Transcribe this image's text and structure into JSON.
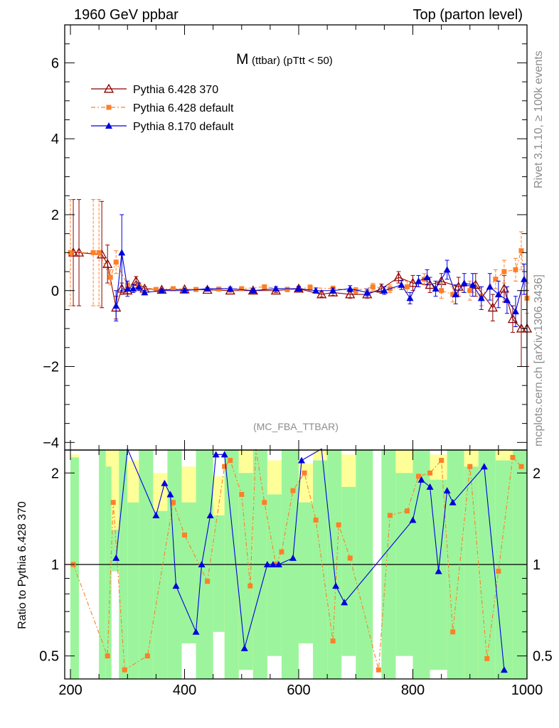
{
  "header": {
    "left": "1960 GeV ppbar",
    "right": "Top (parton level)"
  },
  "side_labels": {
    "rivet": "Rivet 3.1.10, ≥ 100k events",
    "mcplots": "mcplots.cern.ch [arXiv:1306.3436]"
  },
  "colors": {
    "p6_370": "#8b0000",
    "p6_default": "#ff7f27",
    "p8_default": "#0000dd",
    "band_green": "#9cf59c",
    "band_yellow": "#ffff99"
  },
  "chart_data": {
    "type": "scatter",
    "title_main": "M",
    "title_sub": "(ttbar) (pTtt < 50)",
    "analysis_label": "(MC_FBA_TTBAR)",
    "xlim": [
      190,
      1000
    ],
    "ylim": [
      -4.2,
      7.0
    ],
    "x_ticks": [
      200,
      400,
      600,
      800,
      1000
    ],
    "x_tick_labels": [
      "200",
      "400",
      "600",
      "800",
      "1000"
    ],
    "y_ticks": [
      -4,
      -2,
      0,
      2,
      4,
      6
    ],
    "y_tick_labels": [
      "−4",
      "−2",
      "0",
      "2",
      "4",
      "6"
    ],
    "legend": [
      {
        "name": "Pythia 6.428 370",
        "marker": "open-triangle",
        "line": "solid"
      },
      {
        "name": "Pythia 6.428 default",
        "marker": "square",
        "line": "dashdot"
      },
      {
        "name": "Pythia 8.170 default",
        "marker": "filled-triangle",
        "line": "solid"
      }
    ],
    "series": [
      {
        "name": "Pythia 6.428 370",
        "points": [
          [
            205,
            1.0,
            1.4
          ],
          [
            215,
            1.0,
            1.4
          ],
          [
            255,
            0.95,
            1.4
          ],
          [
            265,
            0.7,
            0.5
          ],
          [
            280,
            -0.45,
            0.3
          ],
          [
            290,
            0.05,
            0.15
          ],
          [
            300,
            0.0,
            0.08
          ],
          [
            315,
            0.25,
            0.12
          ],
          [
            330,
            0.05,
            0.05
          ],
          [
            360,
            0.02,
            0.03
          ],
          [
            400,
            0.03,
            0.03
          ],
          [
            440,
            0.02,
            0.03
          ],
          [
            480,
            0.0,
            0.04
          ],
          [
            520,
            0.0,
            0.05
          ],
          [
            560,
            0.0,
            0.05
          ],
          [
            600,
            0.05,
            0.06
          ],
          [
            640,
            -0.1,
            0.07
          ],
          [
            660,
            -0.05,
            0.08
          ],
          [
            690,
            -0.1,
            0.1
          ],
          [
            720,
            -0.1,
            0.1
          ],
          [
            745,
            0.05,
            0.12
          ],
          [
            775,
            0.35,
            0.15
          ],
          [
            800,
            0.2,
            0.2
          ],
          [
            830,
            0.15,
            0.2
          ],
          [
            850,
            0.25,
            0.2
          ],
          [
            880,
            0.1,
            0.25
          ],
          [
            910,
            0.15,
            0.3
          ],
          [
            940,
            -0.45,
            0.35
          ],
          [
            960,
            0.05,
            0.35
          ],
          [
            975,
            -0.75,
            0.35
          ],
          [
            990,
            -1.0,
            1.0
          ],
          [
            1000,
            -1.0,
            1.0
          ]
        ]
      },
      {
        "name": "Pythia 6.428 default",
        "points": [
          [
            200,
            1.0,
            1.4
          ],
          [
            240,
            1.0,
            1.4
          ],
          [
            250,
            1.0,
            1.4
          ],
          [
            270,
            0.35,
            0.2
          ],
          [
            280,
            0.75,
            0.3
          ],
          [
            300,
            0.15,
            0.1
          ],
          [
            320,
            0.1,
            0.08
          ],
          [
            350,
            0.03,
            0.04
          ],
          [
            380,
            0.05,
            0.04
          ],
          [
            420,
            0.03,
            0.03
          ],
          [
            460,
            0.04,
            0.04
          ],
          [
            500,
            0.05,
            0.05
          ],
          [
            540,
            0.1,
            0.05
          ],
          [
            580,
            0.03,
            0.06
          ],
          [
            620,
            0.08,
            0.07
          ],
          [
            660,
            0.05,
            0.07
          ],
          [
            700,
            0.0,
            0.08
          ],
          [
            730,
            0.1,
            0.09
          ],
          [
            760,
            0.05,
            0.1
          ],
          [
            790,
            0.1,
            0.15
          ],
          [
            820,
            0.3,
            0.15
          ],
          [
            850,
            0.0,
            0.2
          ],
          [
            870,
            -0.1,
            0.2
          ],
          [
            900,
            0.0,
            0.25
          ],
          [
            920,
            -0.15,
            0.25
          ],
          [
            945,
            0.3,
            0.25
          ],
          [
            960,
            0.5,
            0.3
          ],
          [
            980,
            0.55,
            0.3
          ],
          [
            990,
            1.05,
            0.5
          ],
          [
            1000,
            -0.2,
            0.4
          ]
        ]
      },
      {
        "name": "Pythia 8.170 default",
        "points": [
          [
            280,
            -0.4,
            0.4
          ],
          [
            290,
            1.0,
            1.0
          ],
          [
            300,
            0.05,
            0.2
          ],
          [
            310,
            0.05,
            0.1
          ],
          [
            320,
            0.1,
            0.1
          ],
          [
            330,
            -0.05,
            0.06
          ],
          [
            360,
            0.0,
            0.03
          ],
          [
            400,
            0.0,
            0.03
          ],
          [
            440,
            0.05,
            0.03
          ],
          [
            480,
            0.05,
            0.04
          ],
          [
            520,
            0.0,
            0.05
          ],
          [
            560,
            0.05,
            0.05
          ],
          [
            600,
            0.05,
            0.06
          ],
          [
            630,
            0.0,
            0.07
          ],
          [
            660,
            0.0,
            0.07
          ],
          [
            690,
            0.05,
            0.08
          ],
          [
            720,
            -0.05,
            0.09
          ],
          [
            750,
            0.0,
            0.1
          ],
          [
            780,
            0.15,
            0.12
          ],
          [
            795,
            -0.2,
            0.15
          ],
          [
            810,
            0.25,
            0.15
          ],
          [
            825,
            0.35,
            0.2
          ],
          [
            840,
            0.05,
            0.2
          ],
          [
            860,
            0.55,
            0.25
          ],
          [
            875,
            -0.1,
            0.25
          ],
          [
            890,
            0.2,
            0.25
          ],
          [
            905,
            0.15,
            0.3
          ],
          [
            920,
            -0.2,
            0.3
          ],
          [
            935,
            0.1,
            0.35
          ],
          [
            950,
            -0.1,
            0.35
          ],
          [
            965,
            -0.25,
            0.35
          ],
          [
            980,
            -0.55,
            0.4
          ],
          [
            995,
            0.3,
            0.4
          ]
        ]
      }
    ],
    "ratio": {
      "ylabel": "Ratio to Pythia 6.428 370",
      "y_ticks": [
        0.5,
        1,
        2
      ],
      "y_tick_labels": [
        "0.5",
        "1",
        "2"
      ],
      "ylim": [
        0.42,
        2.38
      ],
      "reference": 1,
      "series": [
        {
          "name": "Pythia 6.428 default",
          "points": [
            [
              205,
              1.0
            ],
            [
              265,
              0.5
            ],
            [
              275,
              1.6
            ],
            [
              295,
              0.45
            ],
            [
              335,
              0.5
            ],
            [
              380,
              1.6
            ],
            [
              400,
              1.25
            ],
            [
              440,
              0.88
            ],
            [
              470,
              2.1
            ],
            [
              480,
              2.2
            ],
            [
              500,
              1.7
            ],
            [
              515,
              0.85
            ],
            [
              525,
              2.4
            ],
            [
              540,
              1.6
            ],
            [
              560,
              1.0
            ],
            [
              570,
              1.1
            ],
            [
              590,
              1.75
            ],
            [
              610,
              2.0
            ],
            [
              630,
              1.4
            ],
            [
              660,
              0.56
            ],
            [
              670,
              1.35
            ],
            [
              690,
              1.05
            ],
            [
              740,
              0.45
            ],
            [
              760,
              1.45
            ],
            [
              790,
              1.5
            ],
            [
              810,
              1.95
            ],
            [
              830,
              2.0
            ],
            [
              850,
              2.2
            ],
            [
              870,
              0.6
            ],
            [
              900,
              2.1
            ],
            [
              930,
              0.49
            ],
            [
              950,
              0.95
            ],
            [
              975,
              2.25
            ],
            [
              990,
              2.1
            ]
          ]
        },
        {
          "name": "Pythia 8.170 default",
          "points": [
            [
              280,
              1.05
            ],
            [
              300,
              2.4
            ],
            [
              350,
              1.45
            ],
            [
              365,
              1.85
            ],
            [
              375,
              1.7
            ],
            [
              385,
              0.85
            ],
            [
              420,
              0.6
            ],
            [
              430,
              1.0
            ],
            [
              445,
              1.45
            ],
            [
              455,
              2.3
            ],
            [
              470,
              2.3
            ],
            [
              505,
              0.53
            ],
            [
              545,
              1.0
            ],
            [
              555,
              1.0
            ],
            [
              565,
              1.0
            ],
            [
              590,
              1.05
            ],
            [
              605,
              2.2
            ],
            [
              640,
              2.4
            ],
            [
              665,
              0.85
            ],
            [
              680,
              0.75
            ],
            [
              800,
              1.4
            ],
            [
              815,
              1.9
            ],
            [
              830,
              1.8
            ],
            [
              845,
              0.95
            ],
            [
              860,
              1.75
            ],
            [
              870,
              1.6
            ],
            [
              925,
              2.1
            ],
            [
              960,
              0.45
            ]
          ]
        }
      ],
      "bands": [
        [
          200,
          215,
          0.42,
          2.25,
          2.3
        ],
        [
          250,
          262,
          0.42,
          2.38,
          2.38
        ],
        [
          262,
          272,
          0.42,
          2.1,
          2.38
        ],
        [
          272,
          285,
          0.95,
          1.3,
          2.38
        ],
        [
          285,
          300,
          0.42,
          2.38,
          2.38
        ],
        [
          300,
          320,
          0.42,
          1.6,
          2.2
        ],
        [
          320,
          345,
          0.42,
          2.38,
          2.38
        ],
        [
          345,
          370,
          0.42,
          1.5,
          2.0
        ],
        [
          370,
          395,
          0.42,
          2.38,
          2.38
        ],
        [
          395,
          420,
          0.55,
          1.6,
          2.1
        ],
        [
          420,
          450,
          0.42,
          2.38,
          2.38
        ],
        [
          450,
          470,
          0.6,
          1.45,
          1.95
        ],
        [
          470,
          495,
          0.42,
          2.38,
          2.38
        ],
        [
          495,
          520,
          0.45,
          2.0,
          2.38
        ],
        [
          520,
          545,
          0.42,
          2.38,
          2.38
        ],
        [
          545,
          570,
          0.5,
          1.7,
          2.2
        ],
        [
          570,
          600,
          0.42,
          2.38,
          2.38
        ],
        [
          600,
          625,
          0.55,
          1.6,
          2.15
        ],
        [
          625,
          650,
          0.42,
          2.2,
          2.38
        ],
        [
          650,
          675,
          0.42,
          2.38,
          2.38
        ],
        [
          675,
          700,
          0.5,
          1.8,
          2.3
        ],
        [
          700,
          730,
          0.42,
          2.38,
          2.38
        ],
        [
          745,
          770,
          0.42,
          2.38,
          2.38
        ],
        [
          770,
          800,
          0.5,
          2.0,
          2.38
        ],
        [
          800,
          830,
          0.42,
          2.38,
          2.38
        ],
        [
          830,
          860,
          0.45,
          1.9,
          2.3
        ],
        [
          860,
          890,
          0.42,
          2.38,
          2.38
        ],
        [
          890,
          915,
          0.42,
          2.1,
          2.38
        ],
        [
          915,
          945,
          0.42,
          2.38,
          2.38
        ],
        [
          945,
          975,
          0.42,
          2.2,
          2.38
        ],
        [
          975,
          1000,
          0.42,
          2.38,
          2.38
        ]
      ]
    }
  }
}
